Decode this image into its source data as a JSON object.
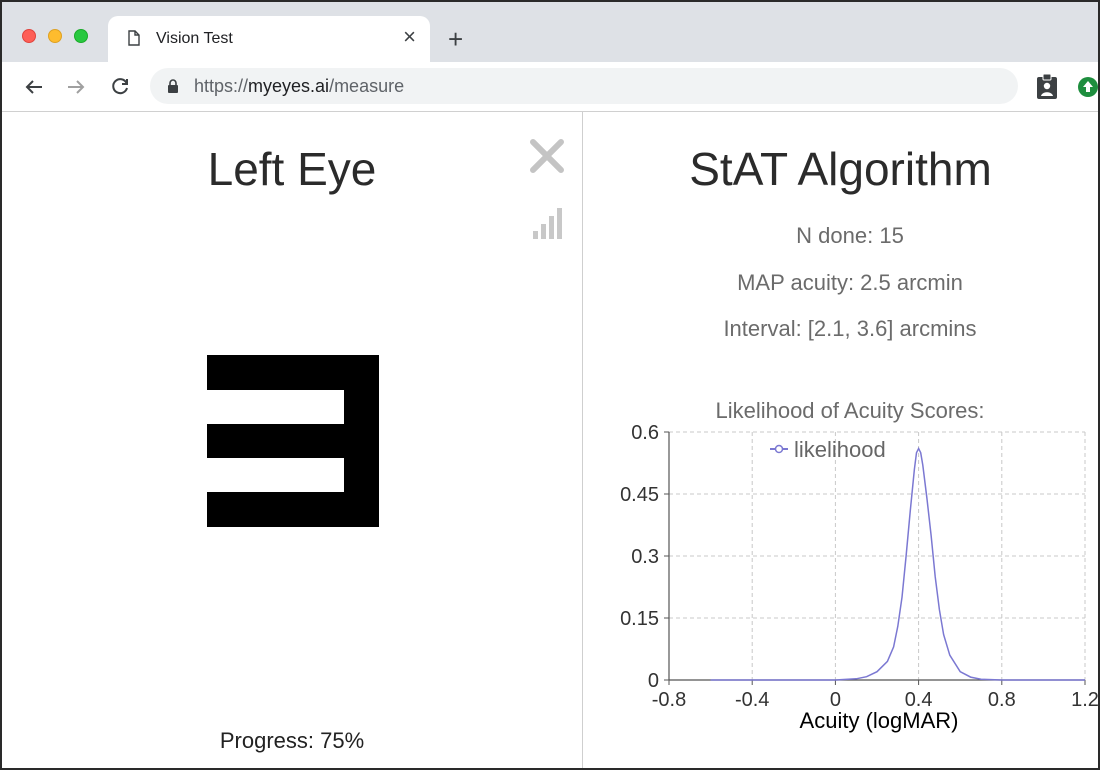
{
  "browser": {
    "tab_title": "Vision Test",
    "tab_close": "×",
    "new_tab": "+",
    "url_scheme": "https://",
    "url_host": "myeyes.ai",
    "url_path": "/measure"
  },
  "left": {
    "title": "Left Eye",
    "progress_text": "Progress: 75%"
  },
  "right": {
    "title": "StAT Algorithm",
    "n_done": "N done: 15",
    "map_acuity": "MAP acuity: 2.5 arcmin",
    "interval": "Interval: [2.1, 3.6] arcmins",
    "chart_title": "Likelihood of Acuity Scores:"
  },
  "colors": {
    "series": "#7b78d2",
    "grid": "#c8c8c8"
  },
  "chart_data": {
    "type": "line",
    "title": "Likelihood of Acuity Scores:",
    "xlabel": "Acuity (logMAR)",
    "ylabel": "",
    "xlim": [
      -0.8,
      1.2
    ],
    "ylim": [
      0,
      0.6
    ],
    "x_ticks": [
      "-0.8",
      "-0.4",
      "0",
      "0.4",
      "0.8",
      "1.2"
    ],
    "y_ticks": [
      "0",
      "0.15",
      "0.3",
      "0.45",
      "0.6"
    ],
    "grid": true,
    "legend_position": "top",
    "series": [
      {
        "name": "likelihood",
        "x": [
          -0.6,
          0.0,
          0.1,
          0.15,
          0.2,
          0.25,
          0.28,
          0.3,
          0.32,
          0.34,
          0.36,
          0.38,
          0.39,
          0.4,
          0.41,
          0.42,
          0.44,
          0.46,
          0.48,
          0.5,
          0.52,
          0.55,
          0.6,
          0.65,
          0.7,
          0.8,
          1.0,
          1.2
        ],
        "y": [
          0.0,
          0.0,
          0.003,
          0.008,
          0.02,
          0.045,
          0.08,
          0.13,
          0.2,
          0.3,
          0.41,
          0.51,
          0.55,
          0.56,
          0.55,
          0.52,
          0.44,
          0.35,
          0.25,
          0.17,
          0.11,
          0.06,
          0.02,
          0.007,
          0.002,
          0.0,
          0.0,
          0.0
        ]
      }
    ]
  }
}
